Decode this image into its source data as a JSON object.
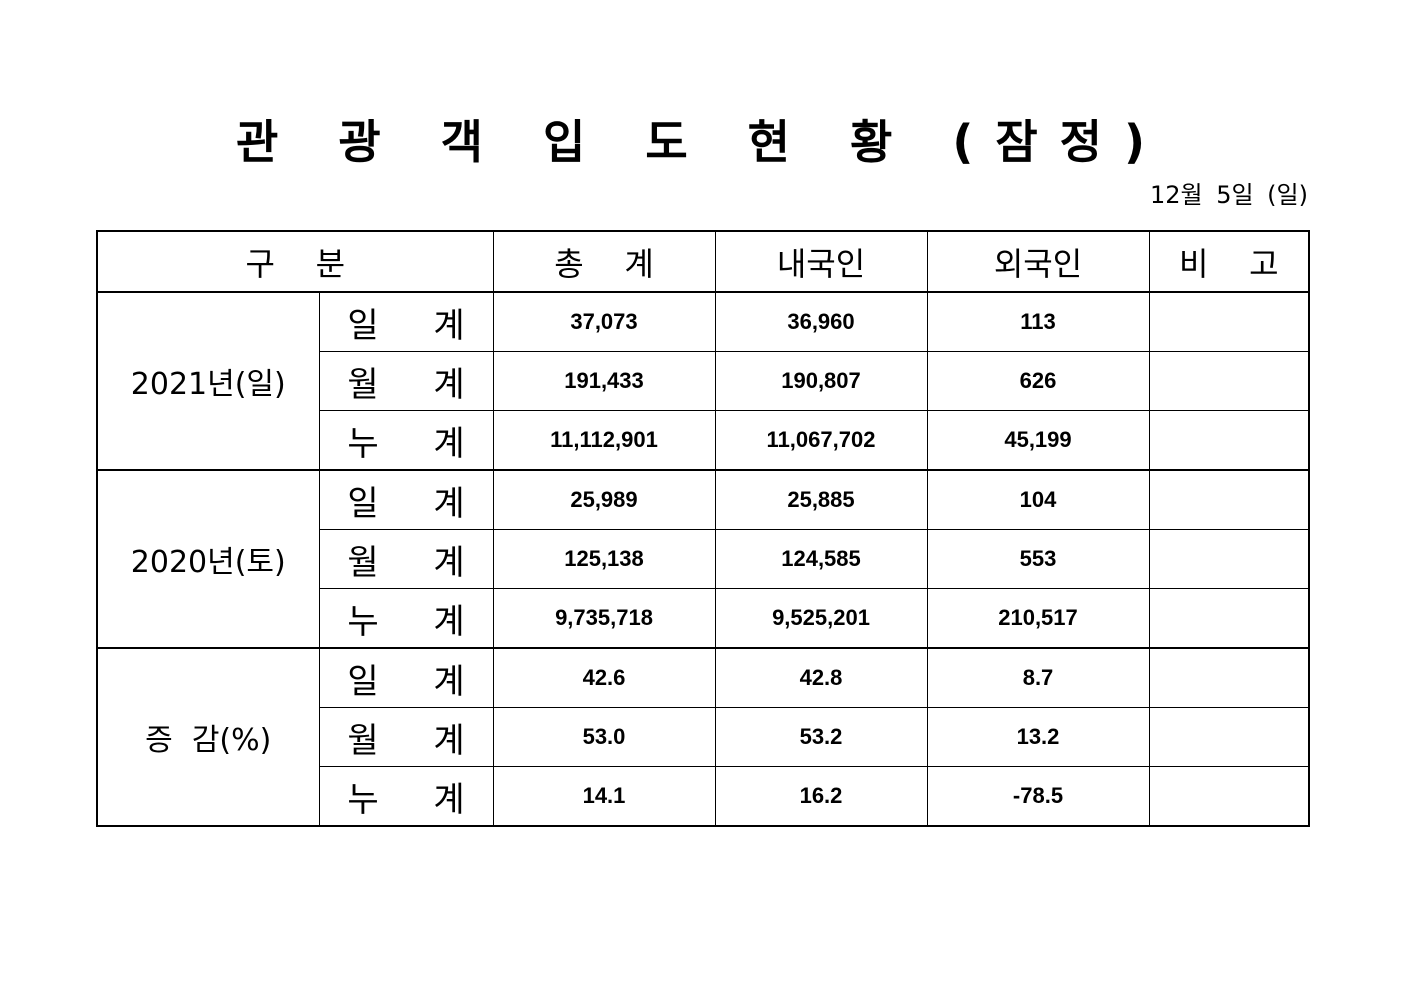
{
  "title": "관 광 객 입 도 현 황 (잠정)",
  "date": "12월 5일 (일)",
  "headers": [
    "구    분",
    "총    계",
    "내국인",
    "외국인",
    "비    고"
  ],
  "groups": [
    {
      "label": "2021년(일)",
      "rows": [
        {
          "sub": "일 계",
          "total": "37,073",
          "domestic": "36,960",
          "foreign": "113",
          "note": ""
        },
        {
          "sub": "월 계",
          "total": "191,433",
          "domestic": "190,807",
          "foreign": "626",
          "note": ""
        },
        {
          "sub": "누 계",
          "total": "11,112,901",
          "domestic": "11,067,702",
          "foreign": "45,199",
          "note": ""
        }
      ]
    },
    {
      "label": "2020년(토)",
      "rows": [
        {
          "sub": "일 계",
          "total": "25,989",
          "domestic": "25,885",
          "foreign": "104",
          "note": ""
        },
        {
          "sub": "월 계",
          "total": "125,138",
          "domestic": "124,585",
          "foreign": "553",
          "note": ""
        },
        {
          "sub": "누 계",
          "total": "9,735,718",
          "domestic": "9,525,201",
          "foreign": "210,517",
          "note": ""
        }
      ]
    },
    {
      "label": "증  감(%)",
      "rows": [
        {
          "sub": "일 계",
          "total": "42.6",
          "domestic": "42.8",
          "foreign": "8.7",
          "note": ""
        },
        {
          "sub": "월 계",
          "total": "53.0",
          "domestic": "53.2",
          "foreign": "13.2",
          "note": ""
        },
        {
          "sub": "누 계",
          "total": "14.1",
          "domestic": "16.2",
          "foreign": "-78.5",
          "note": ""
        }
      ]
    }
  ]
}
